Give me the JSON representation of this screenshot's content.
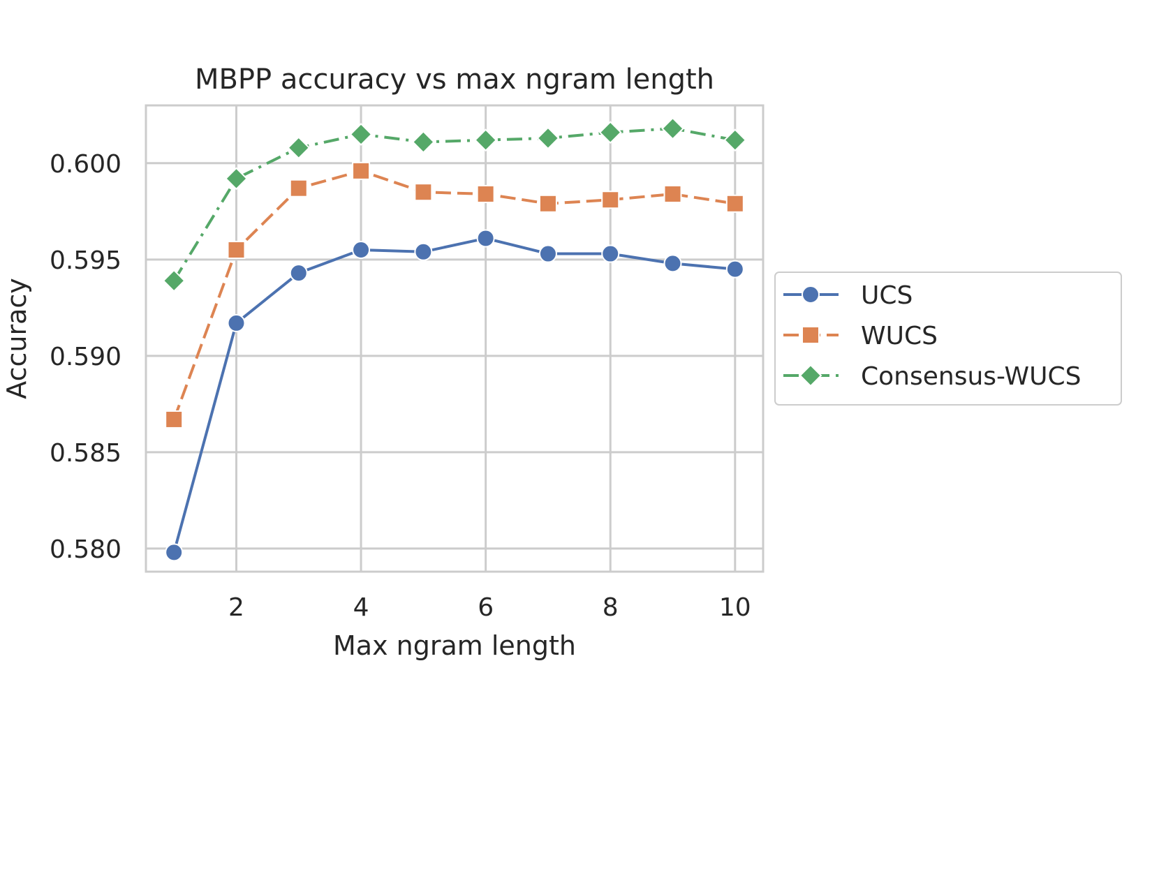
{
  "chart_data": {
    "type": "line",
    "title": "MBPP accuracy vs max ngram length",
    "xlabel": "Max ngram length",
    "ylabel": "Accuracy",
    "x": [
      1,
      2,
      3,
      4,
      5,
      6,
      7,
      8,
      9,
      10
    ],
    "xlim": [
      0.55,
      10.45
    ],
    "ylim": [
      0.5788,
      0.603
    ],
    "xticks": [
      2,
      4,
      6,
      8,
      10
    ],
    "xtick_labels": [
      "2",
      "4",
      "6",
      "8",
      "10"
    ],
    "yticks": [
      0.58,
      0.585,
      0.59,
      0.595,
      0.6
    ],
    "ytick_labels": [
      "0.580",
      "0.585",
      "0.590",
      "0.595",
      "0.600"
    ],
    "grid": true,
    "legend_position": "outside-right",
    "series": [
      {
        "name": "UCS",
        "color": "#4c72b0",
        "marker": "circle",
        "linestyle": "solid",
        "values": [
          0.5798,
          0.5917,
          0.5943,
          0.5955,
          0.5954,
          0.5961,
          0.5953,
          0.5953,
          0.5948,
          0.5945
        ]
      },
      {
        "name": "WUCS",
        "color": "#dd8452",
        "marker": "square",
        "linestyle": "dashed",
        "values": [
          0.5867,
          0.5955,
          0.5987,
          0.5996,
          0.5985,
          0.5984,
          0.5979,
          0.5981,
          0.5984,
          0.5979
        ]
      },
      {
        "name": "Consensus-WUCS",
        "color": "#55a868",
        "marker": "diamond",
        "linestyle": "dashdot",
        "values": [
          0.5939,
          0.5992,
          0.6008,
          0.6015,
          0.6011,
          0.6012,
          0.6013,
          0.6016,
          0.6018,
          0.6012
        ]
      }
    ]
  }
}
